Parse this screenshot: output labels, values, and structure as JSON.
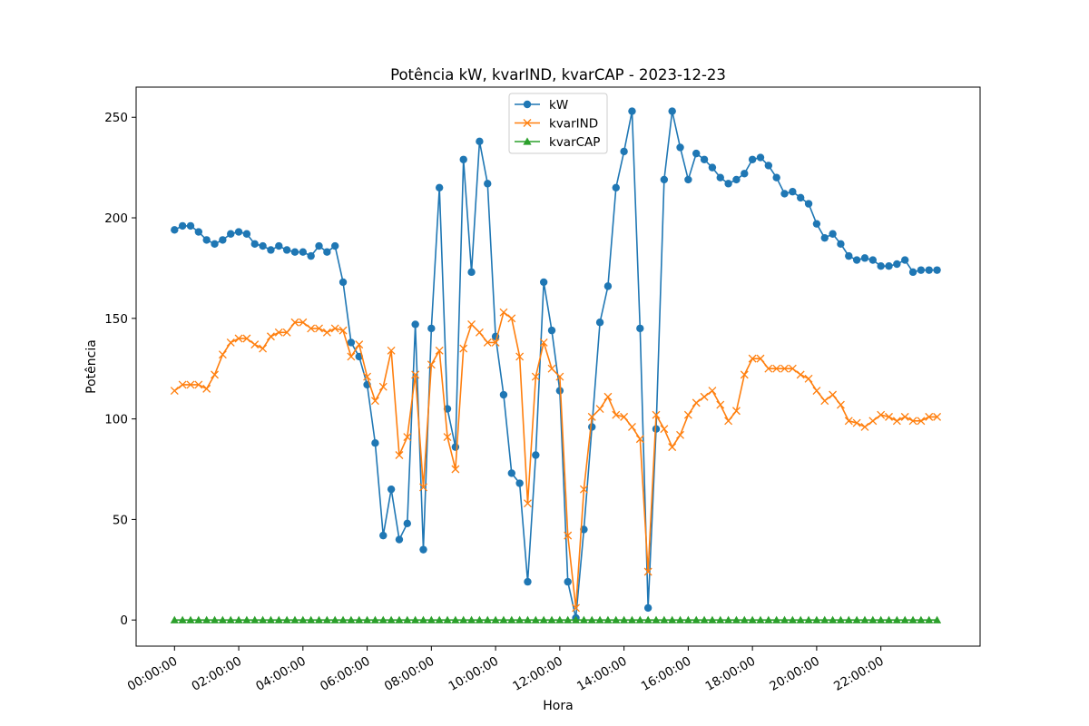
{
  "chart_data": {
    "type": "line",
    "title": "Potência kW, kvarIND, kvarCAP - 2023-12-23",
    "xlabel": "Hora",
    "ylabel": "Potência",
    "x_tick_labels": [
      "00:00:00",
      "02:00:00",
      "04:00:00",
      "06:00:00",
      "08:00:00",
      "10:00:00",
      "12:00:00",
      "14:00:00",
      "16:00:00",
      "18:00:00",
      "20:00:00",
      "22:00:00"
    ],
    "y_ticks": [
      0,
      50,
      100,
      150,
      200,
      250
    ],
    "ylim": [
      -13,
      265
    ],
    "x_interval_minutes": 15,
    "grid": false,
    "legend_position": "upper-center",
    "series": [
      {
        "name": "kW",
        "color": "#1f77b4",
        "marker": "circle",
        "values": [
          194,
          196,
          196,
          193,
          189,
          187,
          189,
          192,
          193,
          192,
          187,
          186,
          184,
          186,
          184,
          183,
          183,
          181,
          186,
          183,
          186,
          168,
          138,
          131,
          117,
          88,
          42,
          65,
          40,
          48,
          147,
          35,
          145,
          215,
          105,
          86,
          229,
          173,
          238,
          217,
          141,
          112,
          73,
          68,
          19,
          82,
          168,
          144,
          114,
          19,
          1,
          45,
          96,
          148,
          166,
          215,
          233,
          253,
          145,
          6,
          95,
          219,
          253,
          235,
          219,
          232,
          229,
          225,
          220,
          217,
          219,
          222,
          229,
          230,
          226,
          220,
          212,
          213,
          210,
          207,
          197,
          190,
          192,
          187,
          181,
          179,
          180,
          179,
          176,
          176,
          177,
          179,
          173,
          174,
          174,
          174
        ]
      },
      {
        "name": "kvarIND",
        "color": "#ff7f0e",
        "marker": "x",
        "values": [
          114,
          117,
          117,
          117,
          115,
          122,
          132,
          138,
          140,
          140,
          137,
          135,
          141,
          143,
          143,
          148,
          148,
          145,
          145,
          143,
          145,
          144,
          131,
          137,
          121,
          109,
          116,
          134,
          82,
          91,
          122,
          66,
          127,
          134,
          91,
          75,
          135,
          147,
          143,
          138,
          138,
          153,
          150,
          131,
          58,
          121,
          138,
          125,
          121,
          42,
          6,
          65,
          101,
          105,
          111,
          102,
          101,
          96,
          90,
          24,
          102,
          95,
          86,
          92,
          102,
          108,
          111,
          114,
          107,
          99,
          104,
          122,
          130,
          130,
          125,
          125,
          125,
          125,
          122,
          120,
          114,
          109,
          112,
          107,
          99,
          98,
          96,
          99,
          102,
          101,
          99,
          101,
          99,
          99,
          101,
          101
        ]
      },
      {
        "name": "kvarCAP",
        "color": "#2ca02c",
        "marker": "triangle",
        "values": [
          0,
          0,
          0,
          0,
          0,
          0,
          0,
          0,
          0,
          0,
          0,
          0,
          0,
          0,
          0,
          0,
          0,
          0,
          0,
          0,
          0,
          0,
          0,
          0,
          0,
          0,
          0,
          0,
          0,
          0,
          0,
          0,
          0,
          0,
          0,
          0,
          0,
          0,
          0,
          0,
          0,
          0,
          0,
          0,
          0,
          0,
          0,
          0,
          0,
          0,
          0,
          0,
          0,
          0,
          0,
          0,
          0,
          0,
          0,
          0,
          0,
          0,
          0,
          0,
          0,
          0,
          0,
          0,
          0,
          0,
          0,
          0,
          0,
          0,
          0,
          0,
          0,
          0,
          0,
          0,
          0,
          0,
          0,
          0,
          0,
          0,
          0,
          0,
          0,
          0,
          0,
          0,
          0,
          0,
          0,
          0
        ]
      }
    ]
  }
}
